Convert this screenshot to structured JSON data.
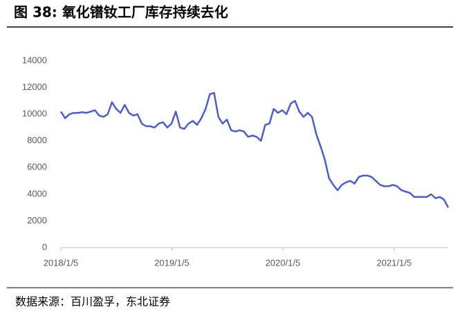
{
  "chart_data": {
    "type": "line",
    "title": "图 38: 氧化镨钕工厂库存持续去化",
    "source": "数据来源：百川盈孚，东北证券",
    "x": [
      "2018/1/5",
      "2018/1/19",
      "2018/2/2",
      "2018/2/16",
      "2018/3/2",
      "2018/3/16",
      "2018/3/30",
      "2018/4/13",
      "2018/4/27",
      "2018/5/11",
      "2018/5/25",
      "2018/6/8",
      "2018/6/22",
      "2018/7/6",
      "2018/7/20",
      "2018/8/3",
      "2018/8/17",
      "2018/8/31",
      "2018/9/14",
      "2018/9/28",
      "2018/10/12",
      "2018/10/26",
      "2018/11/9",
      "2018/11/23",
      "2018/12/7",
      "2018/12/21",
      "2019/1/4",
      "2019/1/18",
      "2019/2/1",
      "2019/2/15",
      "2019/3/1",
      "2019/3/15",
      "2019/3/29",
      "2019/4/12",
      "2019/4/26",
      "2019/5/10",
      "2019/5/24",
      "2019/6/7",
      "2019/6/21",
      "2019/7/5",
      "2019/7/19",
      "2019/8/2",
      "2019/8/16",
      "2019/8/30",
      "2019/9/13",
      "2019/9/27",
      "2019/10/11",
      "2019/10/25",
      "2019/11/8",
      "2019/11/22",
      "2019/12/6",
      "2019/12/20",
      "2020/1/3",
      "2020/1/17",
      "2020/1/31",
      "2020/2/14",
      "2020/2/28",
      "2020/3/13",
      "2020/3/27",
      "2020/4/10",
      "2020/4/24",
      "2020/5/8",
      "2020/5/22",
      "2020/6/5",
      "2020/6/19",
      "2020/7/3",
      "2020/7/17",
      "2020/7/31",
      "2020/8/14",
      "2020/8/28",
      "2020/9/11",
      "2020/9/25",
      "2020/10/9",
      "2020/10/23",
      "2020/11/6",
      "2020/11/20",
      "2020/12/4",
      "2020/12/18",
      "2021/1/1",
      "2021/1/15",
      "2021/1/29",
      "2021/2/12",
      "2021/2/26",
      "2021/3/12",
      "2021/3/26",
      "2021/4/9",
      "2021/4/23",
      "2021/5/7",
      "2021/5/21",
      "2021/6/4",
      "2021/6/18",
      "2021/7/2"
    ],
    "series": [
      {
        "color": "#4a5bd4",
        "values": [
          10200,
          9700,
          10000,
          10100,
          10100,
          10150,
          10100,
          10200,
          10300,
          9900,
          9800,
          10000,
          10900,
          10400,
          10100,
          10700,
          10100,
          9900,
          10000,
          9300,
          9100,
          9100,
          9000,
          9300,
          9400,
          9000,
          9300,
          10200,
          9000,
          8900,
          9300,
          9500,
          9200,
          9700,
          10400,
          11500,
          11600,
          9800,
          9300,
          9600,
          8800,
          8700,
          8800,
          8700,
          8300,
          8400,
          8300,
          8000,
          9200,
          9300,
          10400,
          10100,
          10300,
          10000,
          10800,
          11000,
          10200,
          9800,
          10100,
          9800,
          8500,
          7600,
          6600,
          5200,
          4700,
          4300,
          4700,
          4900,
          5000,
          4800,
          5300,
          5400,
          5400,
          5300,
          5000,
          4700,
          4600,
          4600,
          4700,
          4600,
          4300,
          4200,
          4100,
          3800,
          3800,
          3800,
          3800,
          4000,
          3700,
          3800,
          3600,
          3000
        ]
      }
    ],
    "xlim": [
      "2018/1/5",
      "2021/7/2"
    ],
    "xticks": [
      "2018/1/5",
      "2019/1/5",
      "2020/1/5",
      "2021/1/5"
    ],
    "ylim": [
      0,
      14000
    ],
    "yticks": [
      0,
      2000,
      4000,
      6000,
      8000,
      10000,
      12000,
      14000
    ]
  }
}
